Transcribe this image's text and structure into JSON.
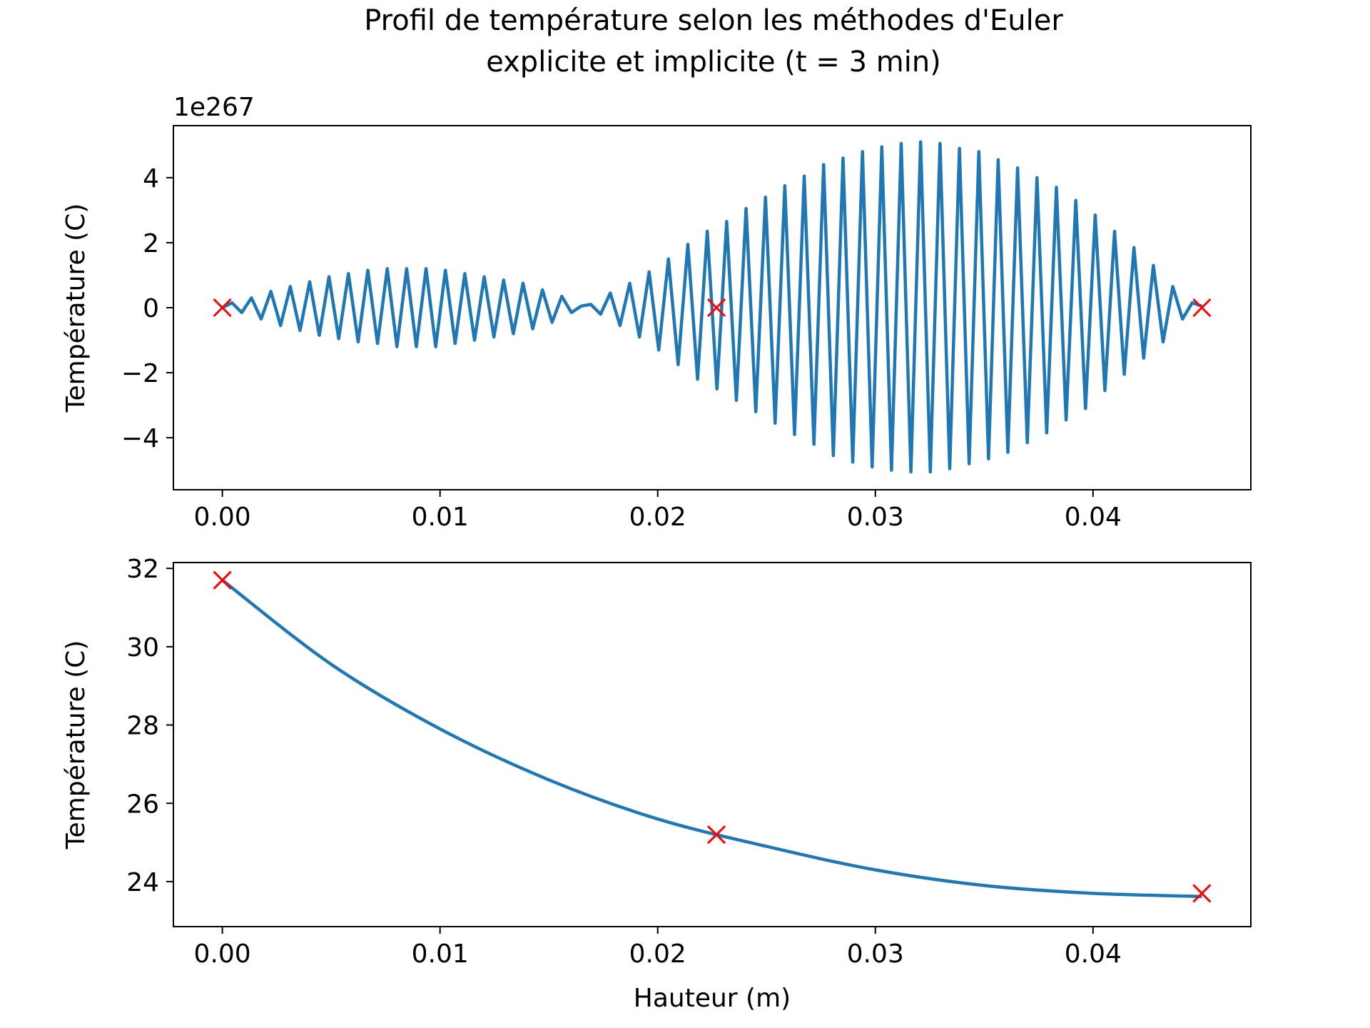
{
  "figure": {
    "title_line1": "Profil de température selon les méthodes d'Euler",
    "title_line2": "explicite et implicite (t = 3 min)"
  },
  "colors": {
    "line": "#1f77b4",
    "marker": "#ff0000",
    "axes": "#000000",
    "background": "#ffffff"
  },
  "chart_data": [
    {
      "type": "line",
      "panel": "top",
      "title": "",
      "xlabel": "",
      "ylabel": "Température (C)",
      "offset_text": "1e267",
      "y_scale_factor": "1e267",
      "xlim": [
        -0.00225,
        0.04725
      ],
      "ylim": [
        -5.6,
        5.6
      ],
      "x_ticks": [
        0.0,
        0.01,
        0.02,
        0.03,
        0.04
      ],
      "x_tick_labels": [
        "0.00",
        "0.01",
        "0.02",
        "0.03",
        "0.04"
      ],
      "y_ticks": [
        -4,
        -2,
        0,
        2,
        4
      ],
      "y_tick_labels": [
        "−4",
        "−2",
        "0",
        "2",
        "4"
      ],
      "grid": false,
      "series": [
        {
          "kind": "line",
          "color": "#1f77b4",
          "x_start": 0.0,
          "x_end": 0.045,
          "y": [
            0,
            0.15,
            -0.15,
            0.3,
            -0.35,
            0.5,
            -0.55,
            0.65,
            -0.7,
            0.8,
            -0.85,
            0.95,
            -0.95,
            1.05,
            -1.05,
            1.15,
            -1.1,
            1.2,
            -1.2,
            1.2,
            -1.2,
            1.2,
            -1.2,
            1.15,
            -1.1,
            1.05,
            -1.0,
            0.95,
            -0.9,
            0.85,
            -0.8,
            0.75,
            -0.65,
            0.55,
            -0.45,
            0.35,
            -0.15,
            0.05,
            0.1,
            -0.2,
            0.45,
            -0.55,
            0.75,
            -0.9,
            1.1,
            -1.3,
            1.5,
            -1.75,
            1.95,
            -2.2,
            2.35,
            -2.5,
            2.65,
            -2.85,
            3.05,
            -3.2,
            3.4,
            -3.55,
            3.75,
            -3.9,
            4.05,
            -4.2,
            4.4,
            -4.55,
            4.6,
            -4.75,
            4.8,
            -4.9,
            4.95,
            -5.0,
            5.05,
            -5.05,
            5.1,
            -5.05,
            5.05,
            -4.95,
            4.9,
            -4.8,
            4.8,
            -4.65,
            4.55,
            -4.45,
            4.3,
            -4.15,
            4.0,
            -3.85,
            3.7,
            -3.45,
            3.3,
            -3.1,
            2.85,
            -2.55,
            2.35,
            -2.05,
            1.85,
            -1.55,
            1.3,
            -1.05,
            0.65,
            -0.35,
            0.15,
            0.05
          ]
        },
        {
          "kind": "markers",
          "marker": "x",
          "color": "#ff0000",
          "x": [
            0.0,
            0.0227,
            0.045
          ],
          "y": [
            0,
            0,
            0
          ]
        }
      ]
    },
    {
      "type": "line",
      "panel": "bottom",
      "title": "",
      "xlabel": "Hauteur (m)",
      "ylabel": "Température (C)",
      "xlim": [
        -0.00225,
        0.04725
      ],
      "ylim": [
        22.85,
        32.15
      ],
      "x_ticks": [
        0.0,
        0.01,
        0.02,
        0.03,
        0.04
      ],
      "x_tick_labels": [
        "0.00",
        "0.01",
        "0.02",
        "0.03",
        "0.04"
      ],
      "y_ticks": [
        24,
        26,
        28,
        30,
        32
      ],
      "y_tick_labels": [
        "24",
        "26",
        "28",
        "30",
        "32"
      ],
      "grid": false,
      "series": [
        {
          "kind": "line",
          "color": "#1f77b4",
          "x": [
            0.0,
            0.005,
            0.01,
            0.015,
            0.02,
            0.025,
            0.03,
            0.035,
            0.04,
            0.045
          ],
          "y": [
            31.7,
            29.55,
            27.9,
            26.6,
            25.6,
            24.9,
            24.3,
            23.9,
            23.7,
            23.62
          ]
        },
        {
          "kind": "markers",
          "marker": "x",
          "color": "#ff0000",
          "x": [
            0.0,
            0.0227,
            0.045
          ],
          "y": [
            31.7,
            25.2,
            23.7
          ]
        }
      ]
    }
  ]
}
